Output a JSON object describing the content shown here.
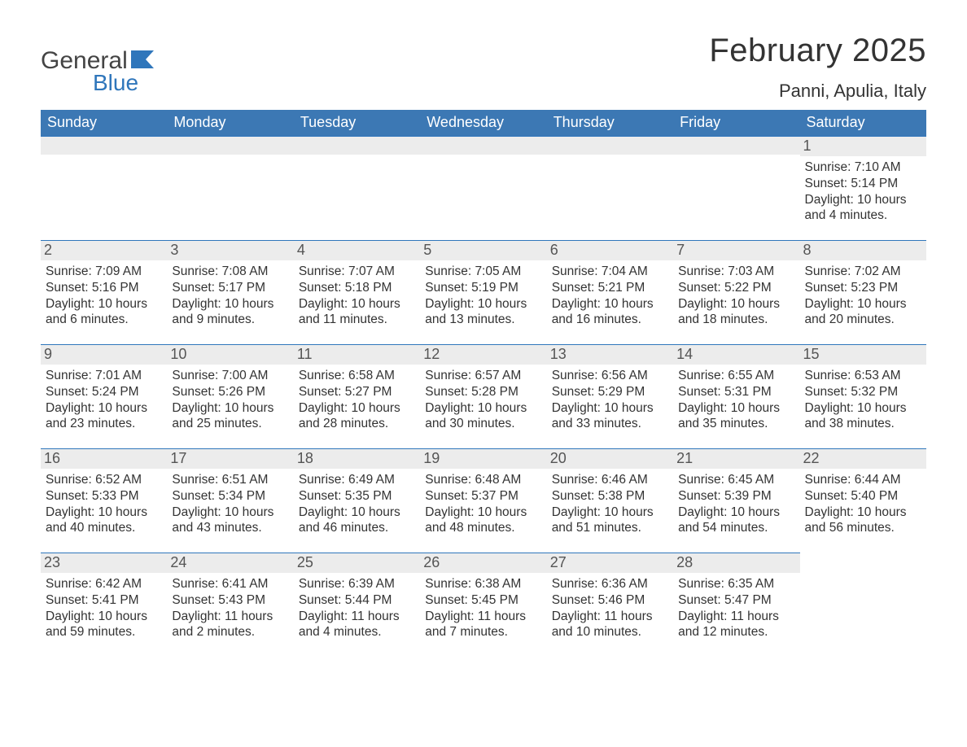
{
  "brand": {
    "word1": "General",
    "word2": "Blue",
    "flag_color": "#2f76bb",
    "text1_color": "#444444",
    "text2_color": "#2f76bb"
  },
  "title": "February 2025",
  "location": "Panni, Apulia, Italy",
  "colors": {
    "header_bg": "#3c78b4",
    "header_text": "#ffffff",
    "daynum_bg": "#ececec",
    "daynum_border": "#2f76bb",
    "body_text": "#333333",
    "page_bg": "#ffffff"
  },
  "fonts": {
    "title_size_pt": 30,
    "location_size_pt": 17,
    "dow_size_pt": 14,
    "daynum_size_pt": 14,
    "body_size_pt": 12
  },
  "days_of_week": [
    "Sunday",
    "Monday",
    "Tuesday",
    "Wednesday",
    "Thursday",
    "Friday",
    "Saturday"
  ],
  "sunrise_label": "Sunrise: ",
  "sunset_label": "Sunset: ",
  "daylight_label": "Daylight: ",
  "weeks": [
    [
      null,
      null,
      null,
      null,
      null,
      null,
      {
        "n": "1",
        "sunrise": "7:10 AM",
        "sunset": "5:14 PM",
        "daylight": "10 hours and 4 minutes."
      }
    ],
    [
      {
        "n": "2",
        "sunrise": "7:09 AM",
        "sunset": "5:16 PM",
        "daylight": "10 hours and 6 minutes."
      },
      {
        "n": "3",
        "sunrise": "7:08 AM",
        "sunset": "5:17 PM",
        "daylight": "10 hours and 9 minutes."
      },
      {
        "n": "4",
        "sunrise": "7:07 AM",
        "sunset": "5:18 PM",
        "daylight": "10 hours and 11 minutes."
      },
      {
        "n": "5",
        "sunrise": "7:05 AM",
        "sunset": "5:19 PM",
        "daylight": "10 hours and 13 minutes."
      },
      {
        "n": "6",
        "sunrise": "7:04 AM",
        "sunset": "5:21 PM",
        "daylight": "10 hours and 16 minutes."
      },
      {
        "n": "7",
        "sunrise": "7:03 AM",
        "sunset": "5:22 PM",
        "daylight": "10 hours and 18 minutes."
      },
      {
        "n": "8",
        "sunrise": "7:02 AM",
        "sunset": "5:23 PM",
        "daylight": "10 hours and 20 minutes."
      }
    ],
    [
      {
        "n": "9",
        "sunrise": "7:01 AM",
        "sunset": "5:24 PM",
        "daylight": "10 hours and 23 minutes."
      },
      {
        "n": "10",
        "sunrise": "7:00 AM",
        "sunset": "5:26 PM",
        "daylight": "10 hours and 25 minutes."
      },
      {
        "n": "11",
        "sunrise": "6:58 AM",
        "sunset": "5:27 PM",
        "daylight": "10 hours and 28 minutes."
      },
      {
        "n": "12",
        "sunrise": "6:57 AM",
        "sunset": "5:28 PM",
        "daylight": "10 hours and 30 minutes."
      },
      {
        "n": "13",
        "sunrise": "6:56 AM",
        "sunset": "5:29 PM",
        "daylight": "10 hours and 33 minutes."
      },
      {
        "n": "14",
        "sunrise": "6:55 AM",
        "sunset": "5:31 PM",
        "daylight": "10 hours and 35 minutes."
      },
      {
        "n": "15",
        "sunrise": "6:53 AM",
        "sunset": "5:32 PM",
        "daylight": "10 hours and 38 minutes."
      }
    ],
    [
      {
        "n": "16",
        "sunrise": "6:52 AM",
        "sunset": "5:33 PM",
        "daylight": "10 hours and 40 minutes."
      },
      {
        "n": "17",
        "sunrise": "6:51 AM",
        "sunset": "5:34 PM",
        "daylight": "10 hours and 43 minutes."
      },
      {
        "n": "18",
        "sunrise": "6:49 AM",
        "sunset": "5:35 PM",
        "daylight": "10 hours and 46 minutes."
      },
      {
        "n": "19",
        "sunrise": "6:48 AM",
        "sunset": "5:37 PM",
        "daylight": "10 hours and 48 minutes."
      },
      {
        "n": "20",
        "sunrise": "6:46 AM",
        "sunset": "5:38 PM",
        "daylight": "10 hours and 51 minutes."
      },
      {
        "n": "21",
        "sunrise": "6:45 AM",
        "sunset": "5:39 PM",
        "daylight": "10 hours and 54 minutes."
      },
      {
        "n": "22",
        "sunrise": "6:44 AM",
        "sunset": "5:40 PM",
        "daylight": "10 hours and 56 minutes."
      }
    ],
    [
      {
        "n": "23",
        "sunrise": "6:42 AM",
        "sunset": "5:41 PM",
        "daylight": "10 hours and 59 minutes."
      },
      {
        "n": "24",
        "sunrise": "6:41 AM",
        "sunset": "5:43 PM",
        "daylight": "11 hours and 2 minutes."
      },
      {
        "n": "25",
        "sunrise": "6:39 AM",
        "sunset": "5:44 PM",
        "daylight": "11 hours and 4 minutes."
      },
      {
        "n": "26",
        "sunrise": "6:38 AM",
        "sunset": "5:45 PM",
        "daylight": "11 hours and 7 minutes."
      },
      {
        "n": "27",
        "sunrise": "6:36 AM",
        "sunset": "5:46 PM",
        "daylight": "11 hours and 10 minutes."
      },
      {
        "n": "28",
        "sunrise": "6:35 AM",
        "sunset": "5:47 PM",
        "daylight": "11 hours and 12 minutes."
      },
      null
    ]
  ]
}
